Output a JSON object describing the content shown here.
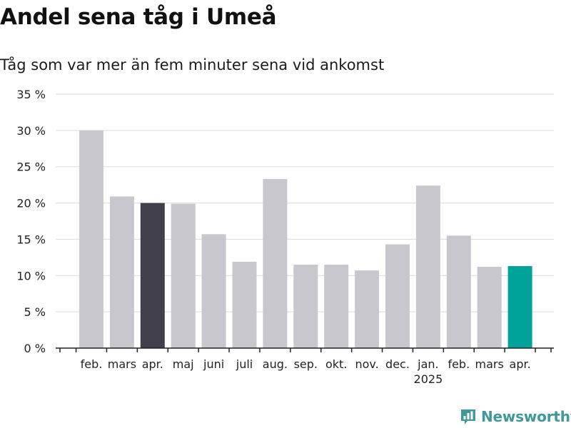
{
  "title": "Andel sena tåg i Umeå",
  "subtitle": "Tåg som var mer än fem minuter sena vid ankomst",
  "brand": "Newsworthy",
  "colors": {
    "default_bar": "#c8c7cd",
    "highlight_prev_year": "#403f4b",
    "highlight_latest": "#00a39a",
    "grid": "#d9d9d9",
    "axis": "#222222",
    "brand": "#3d9a98"
  },
  "chart_data": {
    "type": "bar",
    "title": "Andel sena tåg i Umeå",
    "subtitle": "Tåg som var mer än fem minuter sena vid ankomst",
    "categories": [
      "feb.",
      "mars",
      "apr.",
      "maj",
      "juni",
      "juli",
      "aug.",
      "sep.",
      "okt.",
      "nov.",
      "dec.",
      "jan.",
      "feb.",
      "mars",
      "apr."
    ],
    "year_labels": [
      {
        "index": 11,
        "label": "2025"
      }
    ],
    "values": [
      30.0,
      20.9,
      20.0,
      19.9,
      15.7,
      11.9,
      23.3,
      11.5,
      11.5,
      10.7,
      14.3,
      22.4,
      15.5,
      11.2,
      11.3
    ],
    "highlight": [
      {
        "index": 2,
        "color": "#403f4b"
      },
      {
        "index": 14,
        "color": "#00a39a"
      }
    ],
    "ylim": [
      0,
      35
    ],
    "yticks": [
      0,
      5,
      10,
      15,
      20,
      25,
      30,
      35
    ],
    "ytick_labels": [
      "0 %",
      "5 %",
      "10 %",
      "15 %",
      "20 %",
      "25 %",
      "30 %",
      "35 %"
    ],
    "xlabel": "",
    "ylabel": "",
    "grid": true,
    "legend": "none"
  }
}
